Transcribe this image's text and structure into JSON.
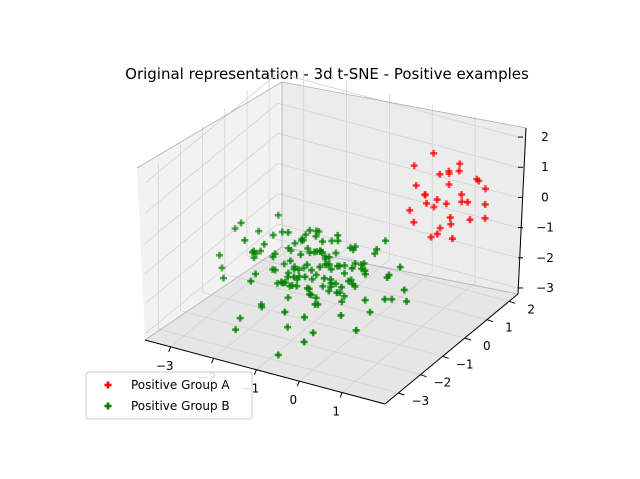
{
  "chart_data": {
    "type": "scatter",
    "title": "Original representation - 3d t-SNE - Positive examples",
    "projection": "3d",
    "grid": true,
    "legend_placement": "lower-left",
    "xlim": [
      -3.6,
      2.0
    ],
    "ylim": [
      -3.6,
      2.4
    ],
    "zlim": [
      -3.2,
      2.3
    ],
    "x_ticks": [
      "−3",
      "−2",
      "−1",
      "0",
      "1"
    ],
    "y_ticks": [
      "−3",
      "−2",
      "−1",
      "0",
      "1",
      "2"
    ],
    "z_ticks": [
      "−3",
      "−2",
      "−1",
      "0",
      "1",
      "2"
    ],
    "series": [
      {
        "name": "Positive Group A",
        "color": "#ff0000",
        "marker": "plus",
        "points": [
          [
            0.6,
            1.3,
            1.6
          ],
          [
            0.9,
            1.0,
            1.2
          ],
          [
            1.2,
            1.4,
            0.4
          ],
          [
            0.8,
            1.6,
            0.9
          ],
          [
            1.0,
            1.1,
            0.2
          ],
          [
            0.4,
            0.9,
            0.7
          ],
          [
            1.3,
            0.7,
            0.1
          ],
          [
            0.7,
            1.8,
            0.3
          ],
          [
            1.5,
            1.2,
            -0.2
          ],
          [
            0.3,
            1.5,
            0.0
          ],
          [
            1.1,
            0.5,
            -0.4
          ],
          [
            0.9,
            1.9,
            1.0
          ],
          [
            1.6,
            0.9,
            0.6
          ],
          [
            0.2,
            1.2,
            1.1
          ],
          [
            1.4,
            1.7,
            0.8
          ],
          [
            0.5,
            0.6,
            -0.3
          ],
          [
            1.0,
            1.3,
            -0.6
          ],
          [
            1.7,
            1.5,
            0.2
          ],
          [
            0.6,
            2.0,
            0.5
          ],
          [
            1.2,
            0.3,
            0.9
          ],
          [
            0.8,
            0.8,
            -0.8
          ],
          [
            1.5,
            1.9,
            0.4
          ],
          [
            0.4,
            1.7,
            -0.5
          ],
          [
            1.3,
            1.1,
            1.4
          ],
          [
            0.9,
            0.4,
            0.6
          ],
          [
            1.8,
            1.3,
            -0.1
          ],
          [
            0.7,
            1.4,
            -0.9
          ],
          [
            1.1,
            1.6,
            0.0
          ],
          [
            1.4,
            0.6,
            -0.5
          ],
          [
            0.5,
            1.1,
            0.3
          ],
          [
            1.6,
            1.4,
            1.0
          ],
          [
            0.3,
            0.8,
            -0.1
          ]
        ]
      },
      {
        "name": "Positive Group B",
        "color": "#008000",
        "marker": "plus",
        "points": [
          [
            -0.8,
            -1.1,
            -0.7
          ],
          [
            -1.2,
            -0.8,
            -1.1
          ],
          [
            -0.3,
            -1.6,
            -1.4
          ],
          [
            -1.5,
            -1.2,
            -0.3
          ],
          [
            -0.6,
            -0.4,
            -1.8
          ],
          [
            -1.0,
            -1.9,
            -0.9
          ],
          [
            -0.2,
            -0.9,
            -0.5
          ],
          [
            -1.8,
            -0.6,
            -1.3
          ],
          [
            -0.9,
            -1.4,
            -2.0
          ],
          [
            -1.3,
            -0.2,
            -0.8
          ],
          [
            -0.5,
            -1.2,
            -1.6
          ],
          [
            -1.7,
            -1.5,
            -1.0
          ],
          [
            -0.1,
            -0.6,
            -1.2
          ],
          [
            -1.1,
            -1.0,
            -0.2
          ],
          [
            -0.7,
            -1.8,
            -1.5
          ],
          [
            -1.4,
            -0.9,
            -1.9
          ],
          [
            -0.4,
            -0.3,
            -0.9
          ],
          [
            -1.9,
            -1.1,
            -0.6
          ],
          [
            -0.8,
            -0.7,
            -1.4
          ],
          [
            -1.2,
            -1.6,
            -1.7
          ],
          [
            -0.3,
            -1.1,
            -2.2
          ],
          [
            -1.6,
            -0.4,
            -1.1
          ],
          [
            -0.6,
            -1.5,
            -0.4
          ],
          [
            -1.0,
            -0.5,
            -1.6
          ],
          [
            -2.2,
            -1.3,
            -1.2
          ],
          [
            -0.9,
            -2.1,
            -1.0
          ],
          [
            -0.2,
            -1.4,
            -0.8
          ],
          [
            -1.5,
            -0.8,
            -2.1
          ],
          [
            -0.7,
            -0.9,
            -1.0
          ],
          [
            -1.3,
            -1.3,
            -1.3
          ],
          [
            -0.5,
            -0.6,
            -2.4
          ],
          [
            -1.8,
            -1.7,
            -0.5
          ],
          [
            -1.1,
            -0.3,
            -1.5
          ],
          [
            -0.4,
            -1.7,
            -1.1
          ],
          [
            -1.6,
            -1.0,
            -1.8
          ],
          [
            -0.8,
            -1.3,
            -0.1
          ],
          [
            -2.0,
            -0.5,
            -0.9
          ],
          [
            -0.6,
            -0.8,
            -1.9
          ],
          [
            -1.2,
            -1.8,
            -1.3
          ],
          [
            -0.1,
            -1.0,
            -1.6
          ],
          [
            -1.4,
            -0.6,
            -0.7
          ],
          [
            -0.9,
            -1.1,
            -2.3
          ],
          [
            -1.7,
            -1.4,
            -1.5
          ],
          [
            -0.3,
            -0.5,
            -1.3
          ],
          [
            -1.0,
            -1.6,
            -0.6
          ],
          [
            -0.7,
            -0.2,
            -1.7
          ],
          [
            -1.5,
            -1.9,
            -1.1
          ],
          [
            -0.5,
            -1.3,
            -1.8
          ],
          [
            -2.3,
            -0.9,
            -1.4
          ],
          [
            -1.1,
            -0.7,
            -0.4
          ],
          [
            -0.2,
            -1.8,
            -1.0
          ],
          [
            -1.3,
            -1.2,
            -2.0
          ],
          [
            -0.8,
            -0.4,
            -1.2
          ],
          [
            -1.9,
            -0.3,
            -1.6
          ],
          [
            -0.6,
            -1.9,
            -1.6
          ],
          [
            -1.2,
            -0.9,
            -0.9
          ],
          [
            -0.4,
            -1.0,
            -2.0
          ],
          [
            -1.6,
            -1.6,
            -0.8
          ],
          [
            -0.9,
            -0.6,
            -1.5
          ],
          [
            -0.1,
            -1.5,
            -1.4
          ],
          [
            -1.4,
            -1.4,
            -2.3
          ],
          [
            -0.7,
            -1.2,
            -0.3
          ],
          [
            -1.8,
            -0.8,
            -1.7
          ],
          [
            -1.0,
            -0.2,
            -1.0
          ],
          [
            -0.3,
            -0.8,
            -1.7
          ],
          [
            -1.5,
            -1.1,
            -1.3
          ],
          [
            -0.6,
            -1.6,
            -2.1
          ],
          [
            -2.1,
            -1.6,
            -0.9
          ],
          [
            -1.1,
            -1.5,
            -1.2
          ],
          [
            -0.5,
            -0.2,
            -1.1
          ],
          [
            -1.3,
            -0.5,
            -2.2
          ],
          [
            -0.8,
            -1.7,
            -0.8
          ],
          [
            -1.7,
            -0.2,
            -1.2
          ],
          [
            -0.2,
            -0.4,
            -1.5
          ],
          [
            -1.0,
            -1.3,
            -1.9
          ],
          [
            -0.4,
            -1.9,
            -0.6
          ],
          [
            -1.9,
            -1.9,
            -1.4
          ],
          [
            -1.2,
            -1.1,
            -0.5
          ],
          [
            -0.6,
            -1.0,
            -1.3
          ],
          [
            -1.4,
            -1.7,
            -1.6
          ],
          [
            -0.9,
            -0.8,
            -2.1
          ],
          [
            -0.3,
            -1.3,
            -0.9
          ],
          [
            -1.6,
            -0.7,
            -1.0
          ],
          [
            -0.7,
            -0.5,
            -0.7
          ],
          [
            -2.4,
            -1.0,
            -1.6
          ],
          [
            -1.1,
            -1.9,
            -1.5
          ],
          [
            -0.5,
            -0.9,
            -0.2
          ],
          [
            -1.3,
            -0.3,
            -1.4
          ],
          [
            -0.8,
            -1.5,
            -1.1
          ],
          [
            -1.7,
            -1.3,
            -2.0
          ],
          [
            -0.2,
            -0.7,
            -1.9
          ],
          [
            -1.0,
            -0.9,
            -1.7
          ],
          [
            -0.6,
            -1.4,
            -0.5
          ],
          [
            -1.5,
            -0.5,
            -1.9
          ],
          [
            -0.9,
            -1.6,
            -1.3
          ],
          [
            -1.2,
            -0.6,
            -1.2
          ],
          [
            0.3,
            -1.2,
            -1.0
          ],
          [
            0.5,
            -0.6,
            -1.4
          ],
          [
            0.2,
            -1.6,
            -0.6
          ],
          [
            0.6,
            -0.9,
            -1.9
          ],
          [
            0.1,
            -0.3,
            -0.8
          ],
          [
            0.4,
            -1.4,
            -1.7
          ],
          [
            0.7,
            -0.4,
            -1.1
          ],
          [
            0.0,
            -1.9,
            -1.3
          ],
          [
            -2.6,
            -1.2,
            -0.4
          ],
          [
            -2.5,
            -0.6,
            -1.0
          ],
          [
            -0.5,
            -2.4,
            -2.0
          ],
          [
            -1.0,
            -2.3,
            -1.1
          ],
          [
            -0.1,
            0.0,
            -1.2
          ],
          [
            0.2,
            -0.1,
            -0.6
          ],
          [
            -0.4,
            0.1,
            -1.7
          ],
          [
            -1.6,
            -2.2,
            -2.2
          ],
          [
            0.8,
            -1.1,
            -0.9
          ],
          [
            -3.0,
            -1.4,
            -1.5
          ],
          [
            -2.8,
            -0.3,
            -2.0
          ],
          [
            -0.3,
            -2.8,
            -2.5
          ],
          [
            -1.4,
            -2.6,
            -1.8
          ],
          [
            0.5,
            -2.0,
            -2.3
          ],
          [
            -2.0,
            -2.4,
            -2.6
          ],
          [
            -0.8,
            -3.0,
            -3.0
          ],
          [
            0.9,
            -0.5,
            -2.1
          ],
          [
            -3.2,
            -0.9,
            -2.3
          ],
          [
            0.6,
            -1.8,
            -0.4
          ],
          [
            -1.9,
            -2.8,
            -2.7
          ],
          [
            -0.2,
            -2.5,
            -1.4
          ],
          [
            1.0,
            -0.8,
            -1.5
          ],
          [
            -2.3,
            -0.1,
            -0.7
          ],
          [
            -0.6,
            -0.1,
            -2.2
          ],
          [
            -1.1,
            -2.0,
            -2.8
          ],
          [
            0.4,
            -0.2,
            -2.4
          ],
          [
            -2.7,
            -1.8,
            -1.9
          ],
          [
            -0.9,
            -2.6,
            -0.9
          ],
          [
            0.3,
            -2.3,
            -1.7
          ],
          [
            -1.7,
            -2.5,
            -1.2
          ],
          [
            -0.4,
            -2.2,
            -2.6
          ],
          [
            -3.1,
            -0.5,
            -1.2
          ],
          [
            0.1,
            -0.6,
            -2.7
          ],
          [
            -1.3,
            0.1,
            -1.9
          ],
          [
            -2.1,
            -2.0,
            -0.3
          ],
          [
            -0.7,
            -2.9,
            -1.6
          ]
        ]
      }
    ]
  }
}
